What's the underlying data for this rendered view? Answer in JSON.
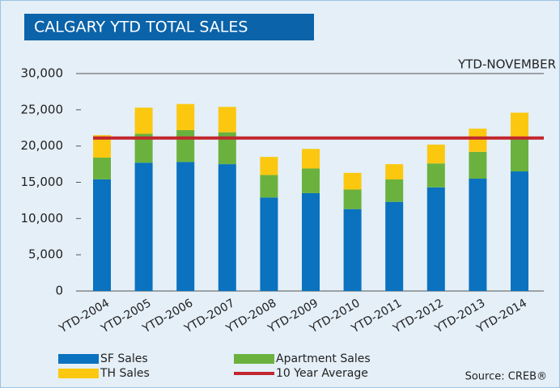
{
  "chart_data": {
    "type": "stacked-bar",
    "title": "CALGARY YTD TOTAL SALES",
    "subtitle": "YTD-NOVEMBER",
    "source": "Source: CREB®",
    "categories": [
      "YTD-2004",
      "YTD-2005",
      "YTD-2006",
      "YTD-2007",
      "YTD-2008",
      "YTD-2009",
      "YTD-2010",
      "YTD-2011",
      "YTD-2012",
      "YTD-2013",
      "YTD-2014"
    ],
    "series": [
      {
        "name": "SF Sales",
        "color": "#0a72bf",
        "values": [
          15400,
          17700,
          17800,
          17500,
          12900,
          13500,
          11300,
          12300,
          14300,
          15500,
          16500
        ]
      },
      {
        "name": "Apartment Sales",
        "color": "#6ab23d",
        "values": [
          3000,
          4000,
          4400,
          4400,
          3100,
          3400,
          2700,
          3100,
          3300,
          3700,
          4500
        ]
      },
      {
        "name": "TH Sales",
        "color": "#fcc80f",
        "values": [
          3100,
          3600,
          3600,
          3500,
          2500,
          2700,
          2300,
          2100,
          2600,
          3200,
          3600
        ]
      }
    ],
    "average": {
      "name": "10 Year Average",
      "color": "#c1272d",
      "value": 21100
    },
    "ylim": [
      0,
      30000
    ],
    "yticks": [
      0,
      {
        "value": 5000,
        "label": "5,000"
      },
      {
        "value": 10000,
        "label": "10,000"
      },
      {
        "value": 15000,
        "label": "15,000"
      },
      {
        "value": 20000,
        "label": "20,000"
      },
      {
        "value": 25000,
        "label": "25,000"
      },
      {
        "value": 30000,
        "label": "30,000"
      }
    ]
  }
}
